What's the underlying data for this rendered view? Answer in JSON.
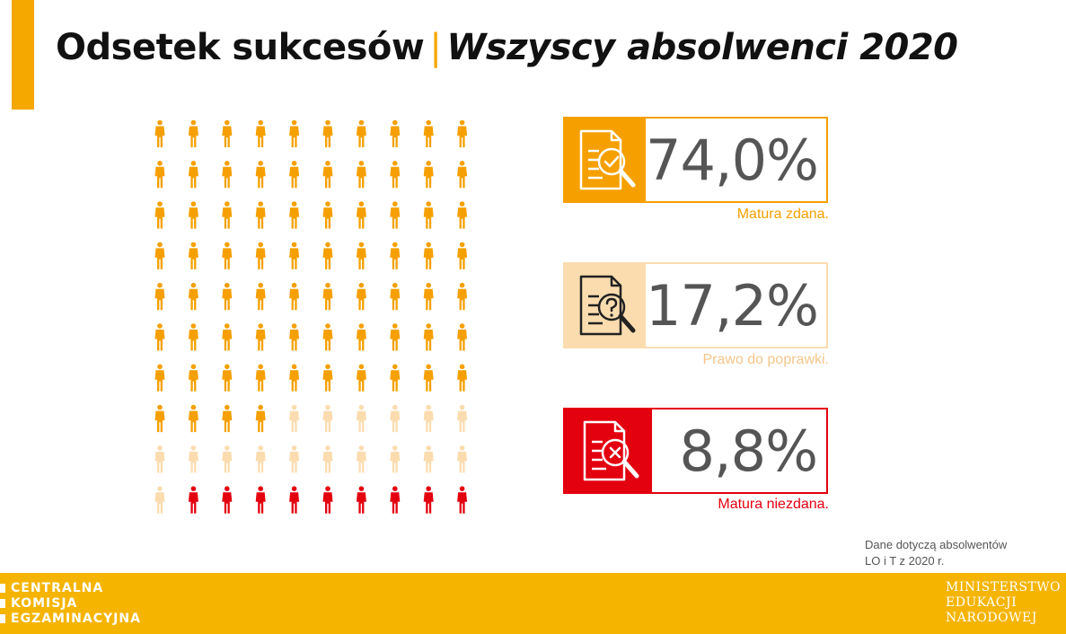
{
  "header": {
    "title_main": "Odsetek sukcesów",
    "separator": "|",
    "title_sub": "Wszyscy absolwenci 2020"
  },
  "chart_data": {
    "type": "pictogram",
    "rows": 10,
    "columns": 10,
    "series": [
      {
        "name": "Matura zdana.",
        "value": 74.0,
        "icons": 74,
        "color": "#f5a000"
      },
      {
        "name": "Prawo do poprawki.",
        "value": 17.2,
        "icons": 17,
        "color": "#fbdcaf"
      },
      {
        "name": "Matura niezdana.",
        "value": 8.8,
        "icons": 9,
        "color": "#e3000f"
      }
    ]
  },
  "stats": [
    {
      "value": "74,0%",
      "label": "Matura zdana.",
      "icon": "document-magnifier-check-icon",
      "border_color": "#f5a000",
      "icon_bg": "#f5a000",
      "label_color": "#f5a000"
    },
    {
      "value": "17,2%",
      "label": "Prawo do poprawki.",
      "icon": "document-magnifier-question-icon",
      "border_color": "#fbdcaf",
      "icon_bg": "#fbdcaf",
      "label_color": "#f5c58a"
    },
    {
      "value": "8,8%",
      "label": "Matura niezdana.",
      "icon": "document-magnifier-cross-icon",
      "border_color": "#e3000f",
      "icon_bg": "#e3000f",
      "label_color": "#e3000f"
    }
  ],
  "note": {
    "line1": "Dane dotyczą absolwentów",
    "line2": "LO i T z 2020 r."
  },
  "footer": {
    "left_lines": [
      "CENTRALNA",
      "KOMISJA",
      "EGZAMINACYJNA"
    ],
    "right_lines": [
      "MINISTERSTWO",
      "EDUKACJI",
      "NARODOWEJ"
    ]
  }
}
